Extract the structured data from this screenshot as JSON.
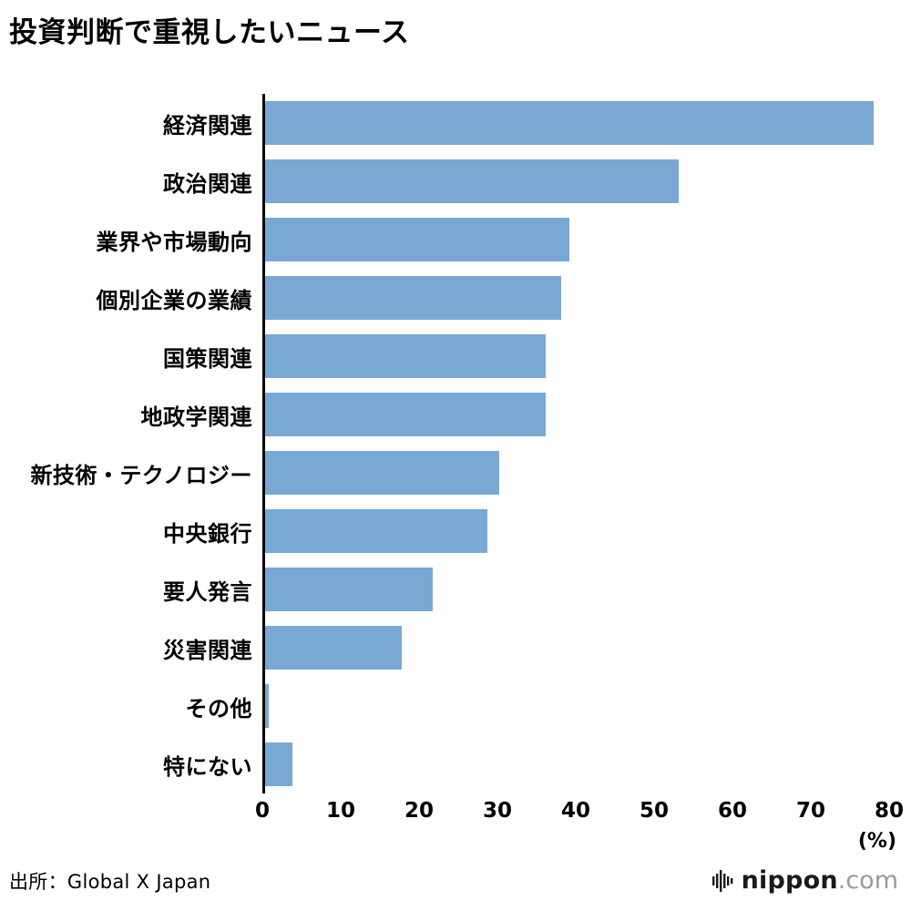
{
  "title": "投資判断で重視したいニュース",
  "chart_data": {
    "type": "bar",
    "orientation": "horizontal",
    "title": "投資判断で重視したいニュース",
    "categories": [
      "経済関連",
      "政治関連",
      "業界や市場動向",
      "個別企業の業績",
      "国策関連",
      "地政学関連",
      "新技術・テクノロジー",
      "中央銀行",
      "要人発言",
      "災害関連",
      "その他",
      "特にない"
    ],
    "values": [
      78,
      53,
      39,
      38,
      36,
      36,
      30,
      28.5,
      21.5,
      17.5,
      0.5,
      3.5
    ],
    "xlim": [
      0,
      80
    ],
    "ticks": [
      0,
      10,
      20,
      30,
      40,
      50,
      60,
      70,
      80
    ],
    "x_unit_label": "(%)",
    "bar_color": "#7aa8d4",
    "axis_color": "#000000",
    "grid": false,
    "legend": "none"
  },
  "source": "出所：Global X Japan",
  "logo": {
    "icon": "soundwave-icon",
    "name": "nippon",
    "tld": ".com"
  }
}
